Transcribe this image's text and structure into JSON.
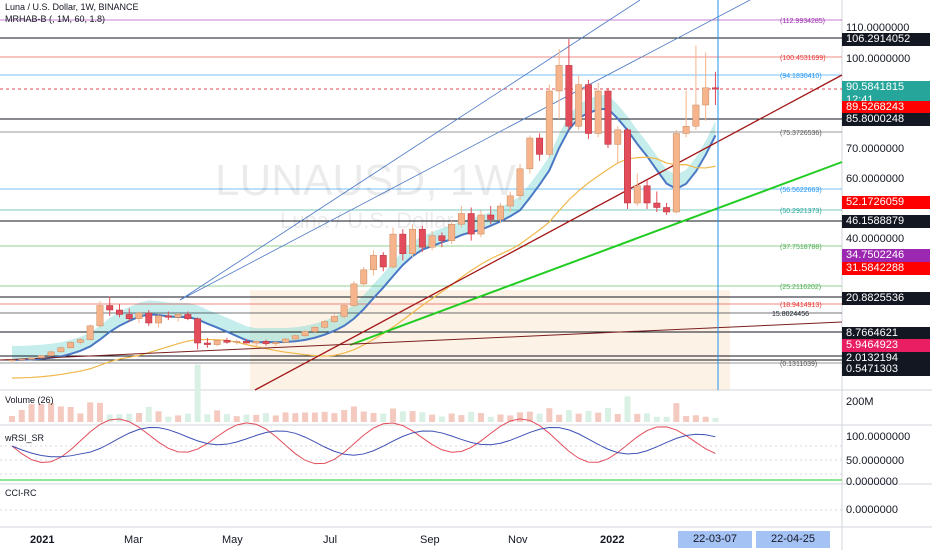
{
  "header": {
    "symbol_line": "Luna / U.S. Dollar, 1W, BINANCE",
    "indicator_line": "MRHAB-B (, 1M, 60, 1.8)"
  },
  "watermark": {
    "ticker": "LUNAUSD, 1W",
    "name": "Luna / U.S. Dollar"
  },
  "colors": {
    "up": "#f5b48c",
    "down": "#e34c5a",
    "teal_band": "#7fd6d2",
    "ma_blue": "#4a78c4",
    "green_trend": "#22cc22",
    "red_trend": "#a31515",
    "orange": "#f0b84a",
    "highlight_date": "#a4c2f4",
    "last_price": "#26a69a",
    "red_tag": "#ff0000",
    "purple_tag": "#9c27b0",
    "pink_tag": "#e91e63"
  },
  "fib_levels": [
    {
      "label": "(112.9934285)",
      "color": "#9c27b0"
    },
    {
      "label": "(100.4531699)",
      "color": "#e53935"
    },
    {
      "label": "(94.1830410)",
      "color": "#2196f3"
    },
    {
      "label": "(75.3726536)",
      "color": "#555555"
    },
    {
      "label": "(56.5622663)",
      "color": "#2196f3"
    },
    {
      "label": "(50.2921373)",
      "color": "#26a69a"
    },
    {
      "label": "(37.7518788)",
      "color": "#4caf50"
    },
    {
      "label": "(25.2116202)",
      "color": "#4caf50"
    },
    {
      "label": "(18.9414913)",
      "color": "#e53935"
    },
    {
      "label": "15.8024456",
      "color": "#131722"
    },
    {
      "label": "(0.1311039)",
      "color": "#555555"
    }
  ],
  "price_axis": {
    "labels": [
      "110.0000000",
      "100.0000000",
      "70.0000000",
      "60.0000000",
      "40.0000000"
    ],
    "tags": [
      {
        "text": "106.2914052",
        "bg": "#131722",
        "fg": "#ffffff"
      },
      {
        "text": "90.5841815",
        "bg": "#26a69a",
        "fg": "#ffffff"
      },
      {
        "text": "12:41",
        "bg": "#26a69a",
        "fg": "#ffffff"
      },
      {
        "text": "89.5268243",
        "bg": "#ff0000",
        "fg": "#ffffff"
      },
      {
        "text": "85.8000248",
        "bg": "#131722",
        "fg": "#ffffff"
      },
      {
        "text": "52.1726059",
        "bg": "#ff0000",
        "fg": "#ffffff"
      },
      {
        "text": "46.1588879",
        "bg": "#131722",
        "fg": "#ffffff"
      },
      {
        "text": "34.7502246",
        "bg": "#9c27b0",
        "fg": "#ffffff"
      },
      {
        "text": "31.5842288",
        "bg": "#ff0000",
        "fg": "#ffffff"
      },
      {
        "text": "20.8825536",
        "bg": "#131722",
        "fg": "#ffffff"
      },
      {
        "text": "8.7664621",
        "bg": "#131722",
        "fg": "#ffffff"
      },
      {
        "text": "5.9464923",
        "bg": "#e91e63",
        "fg": "#ffffff"
      },
      {
        "text": "2.0132194",
        "bg": "#131722",
        "fg": "#ffffff"
      },
      {
        "text": "0.5471303",
        "bg": "#131722",
        "fg": "#ffffff"
      }
    ]
  },
  "panes": {
    "volume": {
      "label": "Volume (26)",
      "axis": "200M"
    },
    "wrsi": {
      "label": "wRSI_SR",
      "axis": [
        "100.0000000",
        "50.0000000",
        "0.0000000"
      ]
    },
    "cci": {
      "label": "CCI-RC",
      "axis": "0.0000000"
    }
  },
  "time_axis": {
    "labels": [
      "2021",
      "Mar",
      "May",
      "Jul",
      "Sep",
      "Nov",
      "2022"
    ],
    "highlight": [
      "22-03-07",
      "22-04-25"
    ]
  },
  "chart_data": {
    "type": "candlestick",
    "title": "Luna / U.S. Dollar, 1W, BINANCE",
    "series": [
      {
        "name": "LUNAUSD",
        "ohlc": [
          [
            0.6,
            0.7,
            0.5,
            0.65
          ],
          [
            0.65,
            0.9,
            0.6,
            0.85
          ],
          [
            0.85,
            1.4,
            0.8,
            1.3
          ],
          [
            1.3,
            2.2,
            1.2,
            2.0
          ],
          [
            2.0,
            3.5,
            1.9,
            3.2
          ],
          [
            3.2,
            4.8,
            3.0,
            4.5
          ],
          [
            4.5,
            6.5,
            4.2,
            6.2
          ],
          [
            6.2,
            7.5,
            5.5,
            7.0
          ],
          [
            7.0,
            12.0,
            6.8,
            11.5
          ],
          [
            11.5,
            20.0,
            11.0,
            18.5
          ],
          [
            18.5,
            21.5,
            15.0,
            17.0
          ],
          [
            17.0,
            19.0,
            14.5,
            15.5
          ],
          [
            15.5,
            17.5,
            13.0,
            14.0
          ],
          [
            14.0,
            16.5,
            12.5,
            16.0
          ],
          [
            16.0,
            17.0,
            11.5,
            12.5
          ],
          [
            12.5,
            15.5,
            11.0,
            15.0
          ],
          [
            15.0,
            16.5,
            13.5,
            14.5
          ],
          [
            14.5,
            16.0,
            13.0,
            15.5
          ],
          [
            15.5,
            16.5,
            13.5,
            14.0
          ],
          [
            14.0,
            14.5,
            4.0,
            6.0
          ],
          [
            6.0,
            7.5,
            4.5,
            5.5
          ],
          [
            5.5,
            7.0,
            5.0,
            6.8
          ],
          [
            6.8,
            7.5,
            5.8,
            6.2
          ],
          [
            6.2,
            7.0,
            5.5,
            6.5
          ],
          [
            6.5,
            7.2,
            5.8,
            6.0
          ],
          [
            6.0,
            6.8,
            5.0,
            6.5
          ],
          [
            6.5,
            7.0,
            5.2,
            5.8
          ],
          [
            5.8,
            6.5,
            5.0,
            6.2
          ],
          [
            6.2,
            7.5,
            6.0,
            7.2
          ],
          [
            7.2,
            8.5,
            6.8,
            8.2
          ],
          [
            8.2,
            10.0,
            7.8,
            9.5
          ],
          [
            9.5,
            11.5,
            9.0,
            11.0
          ],
          [
            11.0,
            13.5,
            10.5,
            13.0
          ],
          [
            13.0,
            15.5,
            12.5,
            14.8
          ],
          [
            14.8,
            19.0,
            14.0,
            18.5
          ],
          [
            18.5,
            27.0,
            18.0,
            26.0
          ],
          [
            26.0,
            32.0,
            25.0,
            31.0
          ],
          [
            31.0,
            37.0,
            29.0,
            35.5
          ],
          [
            35.5,
            36.5,
            30.5,
            32.0
          ],
          [
            32.0,
            44.0,
            31.5,
            42.0
          ],
          [
            42.0,
            43.5,
            34.0,
            36.0
          ],
          [
            36.0,
            45.0,
            35.0,
            43.5
          ],
          [
            43.5,
            44.5,
            36.5,
            38.0
          ],
          [
            38.0,
            43.0,
            37.0,
            41.5
          ],
          [
            41.5,
            42.5,
            38.0,
            40.0
          ],
          [
            40.0,
            46.0,
            39.0,
            45.0
          ],
          [
            45.0,
            51.0,
            44.0,
            48.5
          ],
          [
            48.5,
            50.5,
            40.0,
            42.0
          ],
          [
            42.0,
            49.5,
            41.0,
            48.0
          ],
          [
            48.0,
            51.0,
            45.0,
            46.5
          ],
          [
            46.5,
            52.0,
            45.5,
            51.0
          ],
          [
            51.0,
            56.0,
            49.0,
            54.5
          ],
          [
            54.5,
            65.0,
            53.0,
            63.5
          ],
          [
            63.5,
            77.0,
            62.0,
            75.5
          ],
          [
            75.5,
            78.0,
            66.0,
            68.0
          ],
          [
            68.0,
            92.0,
            67.0,
            90.0
          ],
          [
            90.0,
            103.0,
            86.0,
            98.0
          ],
          [
            98.0,
            106.0,
            80.0,
            82.0
          ],
          [
            82.0,
            95.0,
            80.0,
            92.0
          ],
          [
            92.0,
            93.5,
            75.0,
            78.0
          ],
          [
            78.0,
            92.5,
            76.0,
            90.0
          ],
          [
            90.0,
            91.0,
            70.0,
            72.0
          ],
          [
            72.0,
            82.0,
            65.0,
            80.0
          ],
          [
            80.0,
            81.0,
            50.0,
            52.0
          ],
          [
            52.0,
            62.0,
            51.0,
            58.0
          ],
          [
            58.0,
            60.0,
            50.0,
            52.0
          ],
          [
            52.0,
            56.0,
            49.0,
            50.5
          ],
          [
            50.5,
            52.0,
            48.0,
            49.0
          ],
          [
            49.0,
            80.0,
            48.5,
            78.0
          ],
          [
            78.0,
            90.0,
            76.0,
            82.0
          ],
          [
            82.0,
            104.0,
            80.0,
            88.0
          ],
          [
            88.0,
            102.0,
            85.0,
            91.0
          ],
          [
            91.0,
            96.0,
            88.0,
            90.58
          ]
        ]
      }
    ]
  }
}
